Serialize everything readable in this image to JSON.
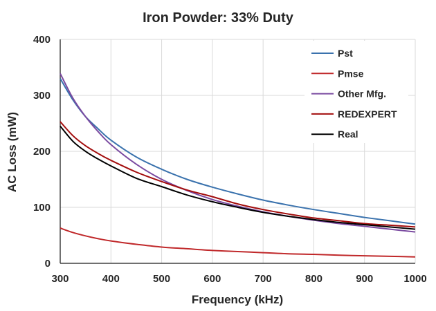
{
  "chart_data": {
    "type": "line",
    "title": "Iron Powder: 33% Duty",
    "xlabel": "Frequency (kHz)",
    "ylabel": "AC Loss (mW)",
    "xlim": [
      300,
      1000
    ],
    "ylim": [
      0,
      400
    ],
    "xticks": [
      300,
      400,
      500,
      600,
      700,
      800,
      900,
      1000
    ],
    "yticks": [
      0,
      100,
      200,
      300,
      400
    ],
    "grid": true,
    "legend_position": "top-right",
    "series": [
      {
        "name": "Pst",
        "color": "#3a72ad",
        "x": [
          300,
          325,
          350,
          375,
          400,
          450,
          500,
          550,
          600,
          650,
          700,
          750,
          800,
          850,
          900,
          950,
          1000
        ],
        "y": [
          330,
          292,
          262,
          240,
          220,
          190,
          168,
          150,
          136,
          124,
          113,
          104,
          96,
          89,
          82,
          76,
          70
        ]
      },
      {
        "name": "Pmse",
        "color": "#c0282a",
        "x": [
          300,
          325,
          350,
          375,
          400,
          450,
          500,
          550,
          600,
          650,
          700,
          750,
          800,
          850,
          900,
          950,
          1000
        ],
        "y": [
          63,
          55,
          49,
          44,
          40,
          34,
          29,
          26,
          23,
          21,
          19,
          17,
          16,
          14.5,
          13.5,
          12.5,
          11.5
        ]
      },
      {
        "name": "Other Mfg.",
        "color": "#7a4aa0",
        "x": [
          300,
          325,
          350,
          375,
          400,
          450,
          500,
          550,
          600,
          650,
          700,
          750,
          800,
          850,
          900,
          950,
          1000
        ],
        "y": [
          339,
          295,
          262,
          235,
          212,
          177,
          150,
          130,
          114,
          102,
          92,
          84,
          77,
          71,
          66,
          61,
          56
        ]
      },
      {
        "name": "REDEXPERT",
        "color": "#a30d0d",
        "x": [
          300,
          325,
          350,
          375,
          400,
          450,
          500,
          550,
          600,
          650,
          700,
          750,
          800,
          850,
          900,
          950,
          1000
        ],
        "y": [
          253,
          228,
          210,
          196,
          184,
          163,
          146,
          131,
          119,
          106,
          96,
          88,
          81,
          76,
          71,
          68,
          65
        ]
      },
      {
        "name": "Real",
        "color": "#000000",
        "x": [
          300,
          325,
          350,
          375,
          400,
          450,
          500,
          550,
          600,
          650,
          700,
          750,
          800,
          850,
          900,
          950,
          1000
        ],
        "y": [
          245,
          218,
          200,
          186,
          174,
          152,
          137,
          122,
          110,
          100,
          91,
          84,
          78,
          73,
          69,
          65,
          61
        ]
      }
    ]
  }
}
